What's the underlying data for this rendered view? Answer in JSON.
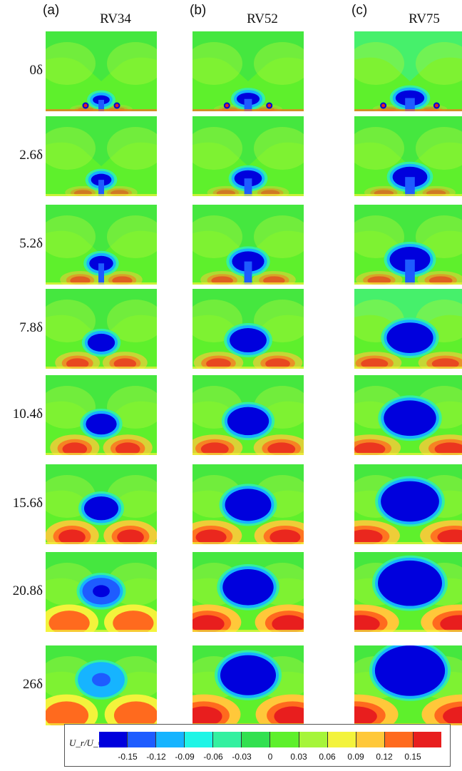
{
  "columns": [
    {
      "letter": "(a)",
      "title": "RV34"
    },
    {
      "letter": "(b)",
      "title": "RV52"
    },
    {
      "letter": "(c)",
      "title": "RV75"
    }
  ],
  "rows": [
    "0δ",
    "2.6δ",
    "5.2δ",
    "7.8δ",
    "10.4δ",
    "15.6δ",
    "20.8δ",
    "26δ"
  ],
  "legend": {
    "title": "U_r/U_∞",
    "ticks": [
      "-0.15",
      "-0.12",
      "-0.09",
      "-0.06",
      "-0.03",
      "0",
      "0.03",
      "0.06",
      "0.09",
      "0.12",
      "0.15"
    ],
    "colors": [
      "#0000dd",
      "#1e5cff",
      "#16b4ff",
      "#1ff5e6",
      "#33f0a0",
      "#32e050",
      "#5ef02c",
      "#a6f53a",
      "#f3f33c",
      "#ffc83a",
      "#ff6a1e",
      "#e81e1e"
    ]
  }
}
